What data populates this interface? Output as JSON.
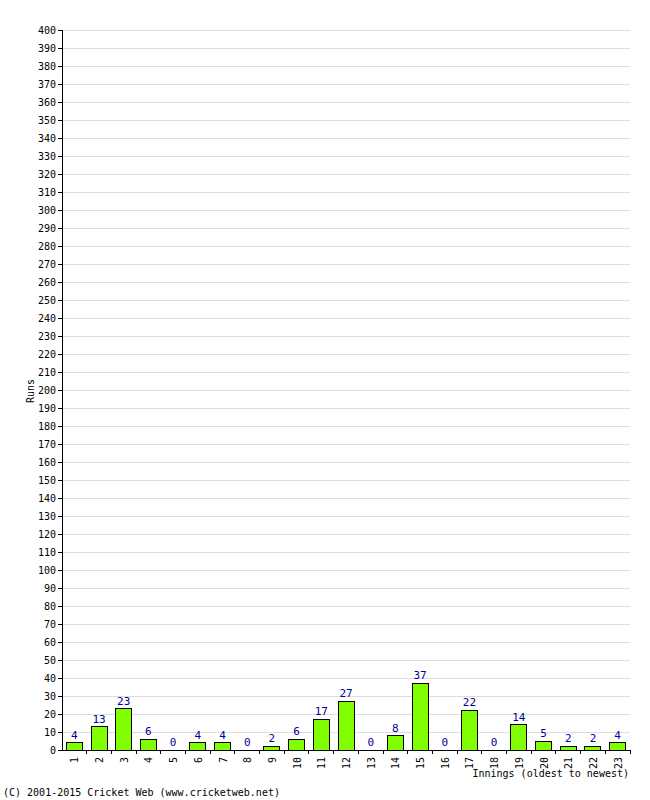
{
  "chart_data": {
    "type": "bar",
    "y_label": "Runs",
    "x_label": "Innings (oldest to newest)",
    "source": "(C) 2001-2015 Cricket Web (www.cricketweb.net)",
    "categories": [
      "1",
      "2",
      "3",
      "4",
      "5",
      "6",
      "7",
      "8",
      "9",
      "10",
      "11",
      "12",
      "13",
      "14",
      "15",
      "16",
      "17",
      "18",
      "19",
      "20",
      "21",
      "22",
      "23"
    ],
    "values": [
      4,
      13,
      23,
      6,
      0,
      4,
      4,
      0,
      2,
      6,
      17,
      27,
      0,
      8,
      37,
      0,
      22,
      0,
      14,
      5,
      2,
      2,
      4
    ],
    "color": "#80ff00",
    "ylim": [
      0,
      400
    ],
    "yticks": [
      0,
      10,
      20,
      30,
      40,
      50,
      60,
      70,
      80,
      90,
      100,
      110,
      120,
      130,
      140,
      150,
      160,
      170,
      180,
      190,
      200,
      210,
      220,
      230,
      240,
      250,
      260,
      270,
      280,
      290,
      300,
      310,
      320,
      330,
      340,
      350,
      360,
      370,
      380,
      390,
      400
    ],
    "grid": true,
    "data_labels": true
  }
}
